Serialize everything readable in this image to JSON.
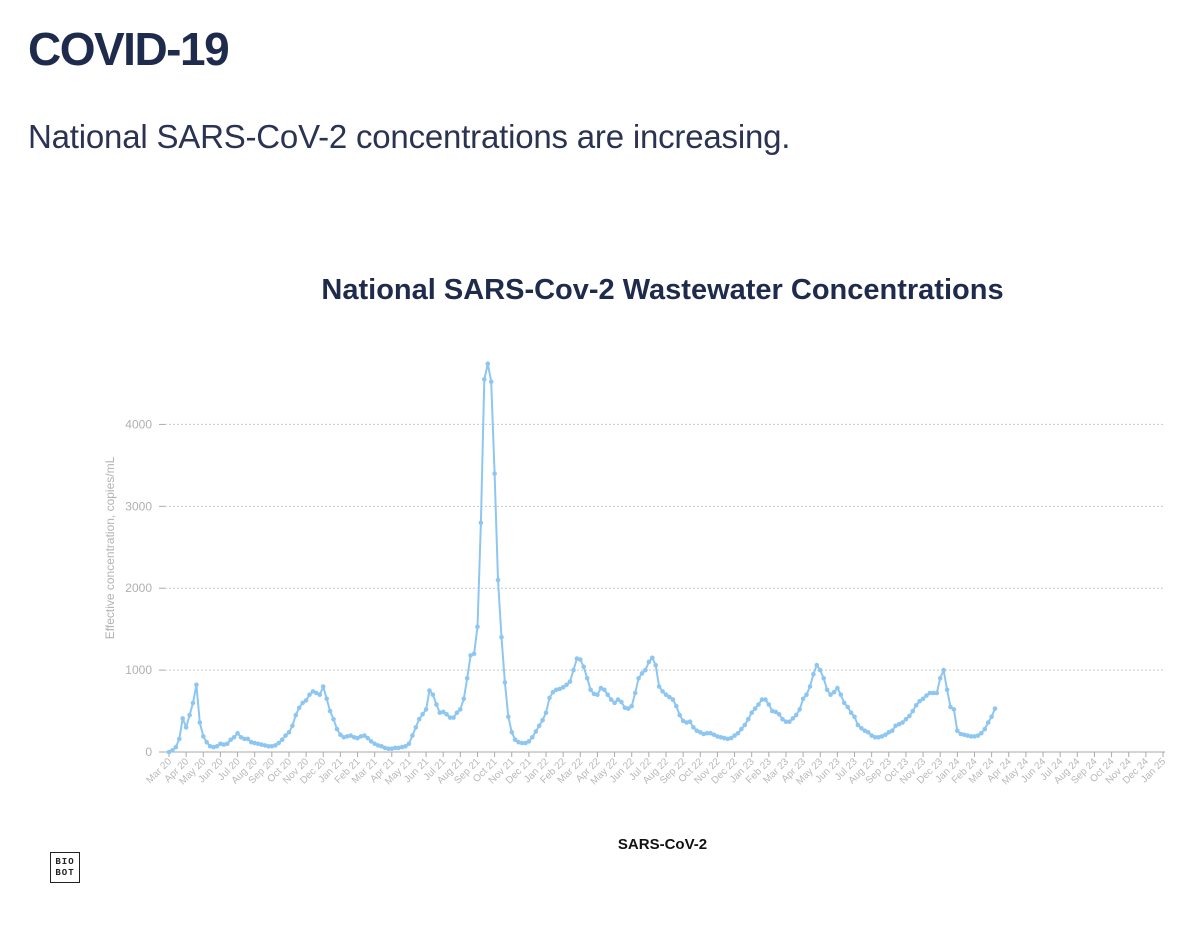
{
  "header": {
    "title": "COVID-19",
    "subtitle": "National SARS-CoV-2 concentrations are increasing."
  },
  "logo": {
    "line1": "BIO",
    "line2": "BOT"
  },
  "colors": {
    "series": "#8ec6f2",
    "grid": "#c9c9c9",
    "axis": "#aaaaaa",
    "title": "#1f2b4c"
  },
  "chart_data": {
    "type": "line",
    "title": "National SARS-Cov-2 Wastewater Concentrations",
    "xlabel": "",
    "ylabel": "Effective concentration, copies/mL",
    "ylim": [
      0,
      4750
    ],
    "yticks": [
      0,
      1000,
      2000,
      3000,
      4000
    ],
    "grid": true,
    "legend_position": "bottom",
    "x_tick_labels": [
      "Mar 20",
      "Apr 20",
      "May 20",
      "Jun 20",
      "Jul 20",
      "Aug 20",
      "Sep 20",
      "Oct 20",
      "Nov 20",
      "Dec 20",
      "Jan 21",
      "Feb 21",
      "Mar 21",
      "Apr 21",
      "May 21",
      "Jun 21",
      "Jul 21",
      "Aug 21",
      "Sep 21",
      "Oct 21",
      "Nov 21",
      "Dec 21",
      "Jan 22",
      "Feb 22",
      "Mar 22",
      "Apr 22",
      "May 22",
      "Jun 22",
      "Jul 22",
      "Aug 22",
      "Sep 22",
      "Oct 22",
      "Nov 22",
      "Dec 22",
      "Jan 23",
      "Feb 23",
      "Mar 23",
      "Apr 23",
      "May 23",
      "Jun 23",
      "Jul 23",
      "Aug 23",
      "Sep 23",
      "Oct 23",
      "Nov 23",
      "Dec 23",
      "Jan 24",
      "Feb 24",
      "Mar 24",
      "Apr 24",
      "May 24",
      "Jun 24",
      "Jul 24",
      "Aug 24",
      "Sep 24",
      "Oct 24",
      "Nov 24",
      "Dec 24",
      "Jan 25"
    ],
    "x_unit": "months since Mar 2020",
    "series": [
      {
        "name": "SARS-CoV-2",
        "points": [
          [
            0.0,
            0
          ],
          [
            0.2,
            20
          ],
          [
            0.4,
            60
          ],
          [
            0.6,
            160
          ],
          [
            0.8,
            410
          ],
          [
            1.0,
            300
          ],
          [
            1.2,
            450
          ],
          [
            1.4,
            600
          ],
          [
            1.6,
            820
          ],
          [
            1.8,
            360
          ],
          [
            2.0,
            190
          ],
          [
            2.2,
            120
          ],
          [
            2.4,
            70
          ],
          [
            2.6,
            60
          ],
          [
            2.8,
            70
          ],
          [
            3.0,
            100
          ],
          [
            3.2,
            90
          ],
          [
            3.4,
            100
          ],
          [
            3.6,
            150
          ],
          [
            3.8,
            180
          ],
          [
            4.0,
            230
          ],
          [
            4.2,
            180
          ],
          [
            4.4,
            160
          ],
          [
            4.6,
            160
          ],
          [
            4.8,
            120
          ],
          [
            5.0,
            110
          ],
          [
            5.2,
            100
          ],
          [
            5.4,
            90
          ],
          [
            5.6,
            80
          ],
          [
            5.8,
            70
          ],
          [
            6.0,
            70
          ],
          [
            6.2,
            80
          ],
          [
            6.4,
            110
          ],
          [
            6.6,
            150
          ],
          [
            6.8,
            200
          ],
          [
            7.0,
            240
          ],
          [
            7.2,
            320
          ],
          [
            7.4,
            450
          ],
          [
            7.6,
            540
          ],
          [
            7.8,
            600
          ],
          [
            8.0,
            630
          ],
          [
            8.2,
            700
          ],
          [
            8.4,
            740
          ],
          [
            8.6,
            720
          ],
          [
            8.8,
            700
          ],
          [
            9.0,
            800
          ],
          [
            9.2,
            650
          ],
          [
            9.4,
            500
          ],
          [
            9.6,
            400
          ],
          [
            9.8,
            280
          ],
          [
            10.0,
            210
          ],
          [
            10.2,
            180
          ],
          [
            10.4,
            190
          ],
          [
            10.6,
            200
          ],
          [
            10.8,
            180
          ],
          [
            11.0,
            170
          ],
          [
            11.2,
            190
          ],
          [
            11.4,
            200
          ],
          [
            11.6,
            170
          ],
          [
            11.8,
            130
          ],
          [
            12.0,
            100
          ],
          [
            12.2,
            80
          ],
          [
            12.4,
            70
          ],
          [
            12.6,
            50
          ],
          [
            12.8,
            40
          ],
          [
            13.0,
            40
          ],
          [
            13.2,
            50
          ],
          [
            13.4,
            50
          ],
          [
            13.6,
            60
          ],
          [
            13.8,
            70
          ],
          [
            14.0,
            100
          ],
          [
            14.2,
            200
          ],
          [
            14.4,
            300
          ],
          [
            14.6,
            400
          ],
          [
            14.8,
            460
          ],
          [
            15.0,
            520
          ],
          [
            15.2,
            750
          ],
          [
            15.4,
            700
          ],
          [
            15.6,
            580
          ],
          [
            15.8,
            480
          ],
          [
            16.0,
            490
          ],
          [
            16.2,
            460
          ],
          [
            16.4,
            420
          ],
          [
            16.6,
            420
          ],
          [
            16.8,
            480
          ],
          [
            17.0,
            520
          ],
          [
            17.2,
            650
          ],
          [
            17.4,
            900
          ],
          [
            17.6,
            1180
          ],
          [
            17.8,
            1200
          ],
          [
            18.0,
            1530
          ],
          [
            18.2,
            2800
          ],
          [
            18.4,
            4550
          ],
          [
            18.6,
            4740
          ],
          [
            18.8,
            4520
          ],
          [
            19.0,
            3400
          ],
          [
            19.2,
            2100
          ],
          [
            19.4,
            1400
          ],
          [
            19.6,
            850
          ],
          [
            19.8,
            430
          ],
          [
            20.0,
            240
          ],
          [
            20.2,
            150
          ],
          [
            20.4,
            120
          ],
          [
            20.6,
            110
          ],
          [
            20.8,
            110
          ],
          [
            21.0,
            130
          ],
          [
            21.2,
            180
          ],
          [
            21.4,
            250
          ],
          [
            21.6,
            320
          ],
          [
            21.8,
            390
          ],
          [
            22.0,
            480
          ],
          [
            22.2,
            660
          ],
          [
            22.4,
            730
          ],
          [
            22.6,
            760
          ],
          [
            22.8,
            770
          ],
          [
            23.0,
            790
          ],
          [
            23.2,
            820
          ],
          [
            23.4,
            860
          ],
          [
            23.6,
            1000
          ],
          [
            23.8,
            1140
          ],
          [
            24.0,
            1130
          ],
          [
            24.2,
            1040
          ],
          [
            24.4,
            900
          ],
          [
            24.6,
            760
          ],
          [
            24.8,
            710
          ],
          [
            25.0,
            700
          ],
          [
            25.2,
            780
          ],
          [
            25.4,
            760
          ],
          [
            25.6,
            700
          ],
          [
            25.8,
            640
          ],
          [
            26.0,
            600
          ],
          [
            26.2,
            640
          ],
          [
            26.4,
            610
          ],
          [
            26.6,
            540
          ],
          [
            26.8,
            530
          ],
          [
            27.0,
            560
          ],
          [
            27.2,
            720
          ],
          [
            27.4,
            900
          ],
          [
            27.6,
            960
          ],
          [
            27.8,
            1000
          ],
          [
            28.0,
            1100
          ],
          [
            28.2,
            1150
          ],
          [
            28.4,
            1060
          ],
          [
            28.6,
            800
          ],
          [
            28.8,
            740
          ],
          [
            29.0,
            700
          ],
          [
            29.2,
            670
          ],
          [
            29.4,
            640
          ],
          [
            29.6,
            560
          ],
          [
            29.8,
            450
          ],
          [
            30.0,
            380
          ],
          [
            30.2,
            360
          ],
          [
            30.4,
            370
          ],
          [
            30.6,
            300
          ],
          [
            30.8,
            260
          ],
          [
            31.0,
            240
          ],
          [
            31.2,
            220
          ],
          [
            31.4,
            230
          ],
          [
            31.6,
            230
          ],
          [
            31.8,
            210
          ],
          [
            32.0,
            190
          ],
          [
            32.2,
            180
          ],
          [
            32.4,
            170
          ],
          [
            32.6,
            160
          ],
          [
            32.8,
            170
          ],
          [
            33.0,
            200
          ],
          [
            33.2,
            230
          ],
          [
            33.4,
            280
          ],
          [
            33.6,
            330
          ],
          [
            33.8,
            400
          ],
          [
            34.0,
            480
          ],
          [
            34.2,
            530
          ],
          [
            34.4,
            580
          ],
          [
            34.6,
            640
          ],
          [
            34.8,
            640
          ],
          [
            35.0,
            580
          ],
          [
            35.2,
            500
          ],
          [
            35.4,
            490
          ],
          [
            35.6,
            460
          ],
          [
            35.8,
            400
          ],
          [
            36.0,
            370
          ],
          [
            36.2,
            370
          ],
          [
            36.4,
            410
          ],
          [
            36.6,
            450
          ],
          [
            36.8,
            520
          ],
          [
            37.0,
            650
          ],
          [
            37.2,
            700
          ],
          [
            37.4,
            800
          ],
          [
            37.6,
            950
          ],
          [
            37.8,
            1060
          ],
          [
            38.0,
            1000
          ],
          [
            38.2,
            900
          ],
          [
            38.4,
            760
          ],
          [
            38.6,
            700
          ],
          [
            38.8,
            730
          ],
          [
            39.0,
            780
          ],
          [
            39.2,
            700
          ],
          [
            39.4,
            600
          ],
          [
            39.6,
            550
          ],
          [
            39.8,
            480
          ],
          [
            40.0,
            430
          ],
          [
            40.2,
            330
          ],
          [
            40.4,
            290
          ],
          [
            40.6,
            260
          ],
          [
            40.8,
            240
          ],
          [
            41.0,
            200
          ],
          [
            41.2,
            180
          ],
          [
            41.4,
            180
          ],
          [
            41.6,
            190
          ],
          [
            41.8,
            210
          ],
          [
            42.0,
            240
          ],
          [
            42.2,
            260
          ],
          [
            42.4,
            320
          ],
          [
            42.6,
            340
          ],
          [
            42.8,
            360
          ],
          [
            43.0,
            400
          ],
          [
            43.2,
            440
          ],
          [
            43.4,
            500
          ],
          [
            43.6,
            570
          ],
          [
            43.8,
            620
          ],
          [
            44.0,
            650
          ],
          [
            44.2,
            690
          ],
          [
            44.4,
            720
          ],
          [
            44.6,
            720
          ],
          [
            44.8,
            720
          ],
          [
            45.0,
            900
          ],
          [
            45.2,
            1000
          ],
          [
            45.4,
            760
          ],
          [
            45.6,
            550
          ],
          [
            45.8,
            520
          ],
          [
            46.0,
            260
          ],
          [
            46.2,
            220
          ],
          [
            46.4,
            210
          ],
          [
            46.6,
            200
          ],
          [
            46.8,
            190
          ],
          [
            47.0,
            190
          ],
          [
            47.2,
            200
          ],
          [
            47.4,
            230
          ],
          [
            47.6,
            280
          ],
          [
            47.8,
            360
          ],
          [
            48.0,
            430
          ],
          [
            48.2,
            530
          ]
        ]
      }
    ]
  }
}
